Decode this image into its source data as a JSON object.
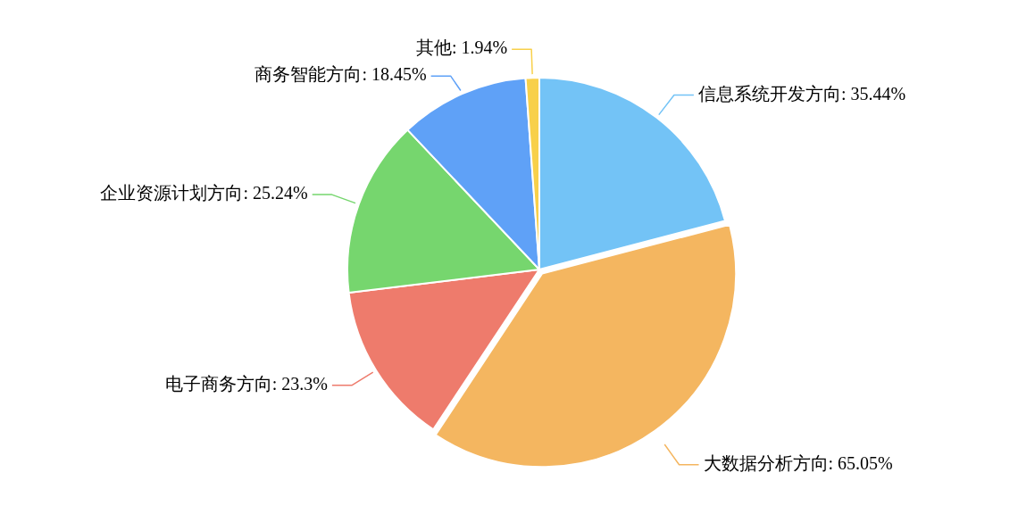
{
  "chart_data": {
    "type": "pie",
    "categories": [
      "信息系统开发方向",
      "大数据分析方向",
      "电子商务方向",
      "企业资源计划方向",
      "商务智能方向",
      "其他"
    ],
    "values": [
      35.44,
      65.05,
      23.3,
      25.24,
      18.45,
      1.94
    ],
    "value_labels": [
      "35.44%",
      "65.05%",
      "23.3%",
      "25.24%",
      "18.45%",
      "1.94%"
    ],
    "colors": [
      "#73c3f6",
      "#f4b660",
      "#ee7b6c",
      "#76d66e",
      "#5fa1f7",
      "#f8d04a"
    ],
    "legend": false
  }
}
